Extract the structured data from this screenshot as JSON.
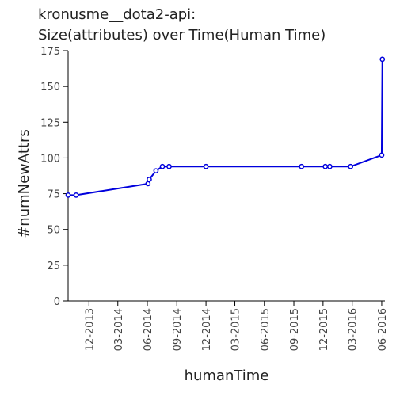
{
  "chart_data": {
    "type": "line",
    "title": "kronusme__dota2-api:",
    "subtitle": "Size(attributes) over Time(Human Time)",
    "xlabel": "humanTime",
    "ylabel": "#numNewAttrs",
    "x_scale": "time",
    "xlim": [
      "2013-09-27",
      "2016-06-11"
    ],
    "ylim": [
      0,
      175
    ],
    "x_ticks": [
      {
        "label": "12-2013",
        "date": "2013-12-01"
      },
      {
        "label": "03-2014",
        "date": "2014-03-01"
      },
      {
        "label": "06-2014",
        "date": "2014-06-01"
      },
      {
        "label": "09-2014",
        "date": "2014-09-01"
      },
      {
        "label": "12-2014",
        "date": "2014-12-01"
      },
      {
        "label": "03-2015",
        "date": "2015-03-01"
      },
      {
        "label": "06-2015",
        "date": "2015-06-01"
      },
      {
        "label": "09-2015",
        "date": "2015-09-01"
      },
      {
        "label": "12-2015",
        "date": "2015-12-01"
      },
      {
        "label": "03-2016",
        "date": "2016-03-01"
      },
      {
        "label": "06-2016",
        "date": "2016-06-01"
      }
    ],
    "y_ticks": [
      0,
      25,
      50,
      75,
      100,
      125,
      150,
      175
    ],
    "grid": false,
    "legend": "none",
    "line_color": "#0000dd",
    "series": [
      {
        "points": [
          {
            "x": "2013-09-27",
            "y": 74
          },
          {
            "x": "2013-10-22",
            "y": 74
          },
          {
            "x": "2014-06-03",
            "y": 82
          },
          {
            "x": "2014-06-07",
            "y": 85
          },
          {
            "x": "2014-06-28",
            "y": 91
          },
          {
            "x": "2014-07-18",
            "y": 94
          },
          {
            "x": "2014-08-08",
            "y": 94
          },
          {
            "x": "2014-12-01",
            "y": 94
          },
          {
            "x": "2015-09-25",
            "y": 94
          },
          {
            "x": "2015-12-08",
            "y": 94
          },
          {
            "x": "2015-12-22",
            "y": 94
          },
          {
            "x": "2016-02-25",
            "y": 94
          },
          {
            "x": "2016-06-01",
            "y": 102
          },
          {
            "x": "2016-06-03",
            "y": 169
          }
        ]
      }
    ]
  }
}
